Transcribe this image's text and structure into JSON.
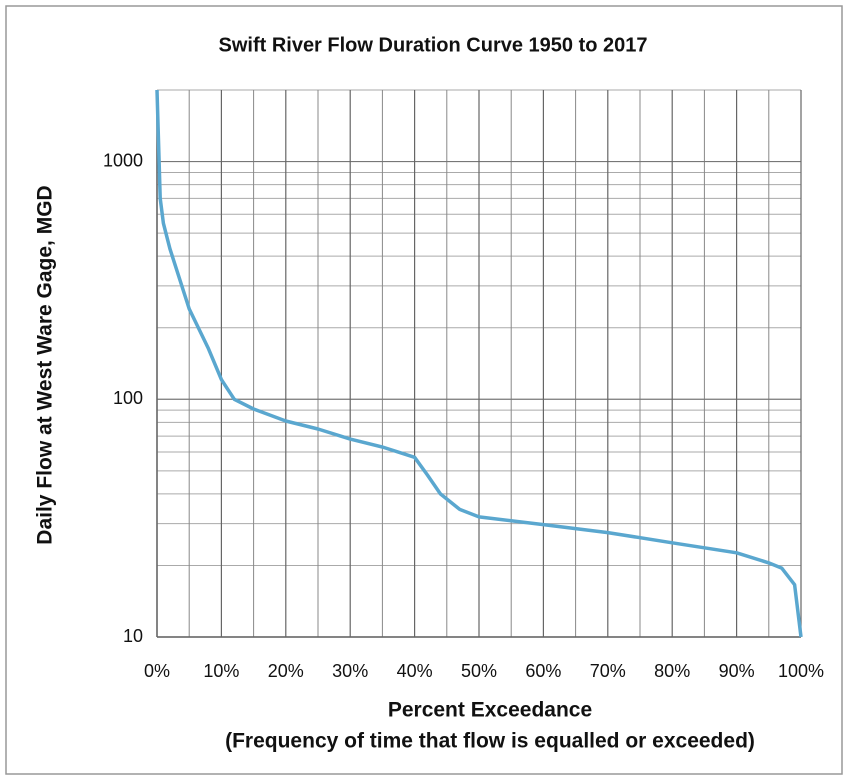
{
  "chart_data": {
    "type": "line",
    "title": "Swift River Flow Duration Curve 1950 to 2017",
    "x_label": "Percent Exceedance",
    "x_label_note": "(Frequency of time that flow is equalled or exceeded)",
    "y_label": "Daily Flow at West Ware Gage, MGD",
    "x": [
      0,
      0.5,
      1,
      2,
      5,
      8,
      10,
      12,
      15,
      20,
      25,
      30,
      35,
      40,
      42,
      44,
      47,
      50,
      60,
      70,
      80,
      90,
      95,
      97,
      99,
      100
    ],
    "series": [
      {
        "name": "Flow",
        "color": "#5aa7cf",
        "values": [
          2000,
          700,
          550,
          430,
          240,
          163,
          121,
          100,
          91,
          81,
          75,
          68,
          63,
          57,
          48,
          40,
          34.4,
          32,
          29.7,
          27.5,
          24.9,
          22.6,
          20.5,
          19.5,
          16.6,
          10
        ]
      }
    ],
    "xlim": [
      0,
      100
    ],
    "xticks": [
      {
        "value": 0,
        "label": "0%"
      },
      {
        "value": 10,
        "label": "10%"
      },
      {
        "value": 20,
        "label": "20%"
      },
      {
        "value": 30,
        "label": "30%"
      },
      {
        "value": 40,
        "label": "40%"
      },
      {
        "value": 50,
        "label": "50%"
      },
      {
        "value": 60,
        "label": "60%"
      },
      {
        "value": 70,
        "label": "70%"
      },
      {
        "value": 80,
        "label": "80%"
      },
      {
        "value": 90,
        "label": "90%"
      },
      {
        "value": 100,
        "label": "100%"
      }
    ],
    "x_minor_grid": [
      5,
      15,
      25,
      35,
      45,
      55,
      65,
      75,
      85,
      95
    ],
    "ylim": [
      10,
      2000
    ],
    "yticks": [
      10,
      100,
      1000
    ],
    "y_minor_grid": [
      20,
      30,
      40,
      50,
      60,
      70,
      80,
      90,
      200,
      300,
      400,
      500,
      600,
      700,
      800,
      900,
      2000
    ],
    "y_log": true,
    "grid": true
  }
}
